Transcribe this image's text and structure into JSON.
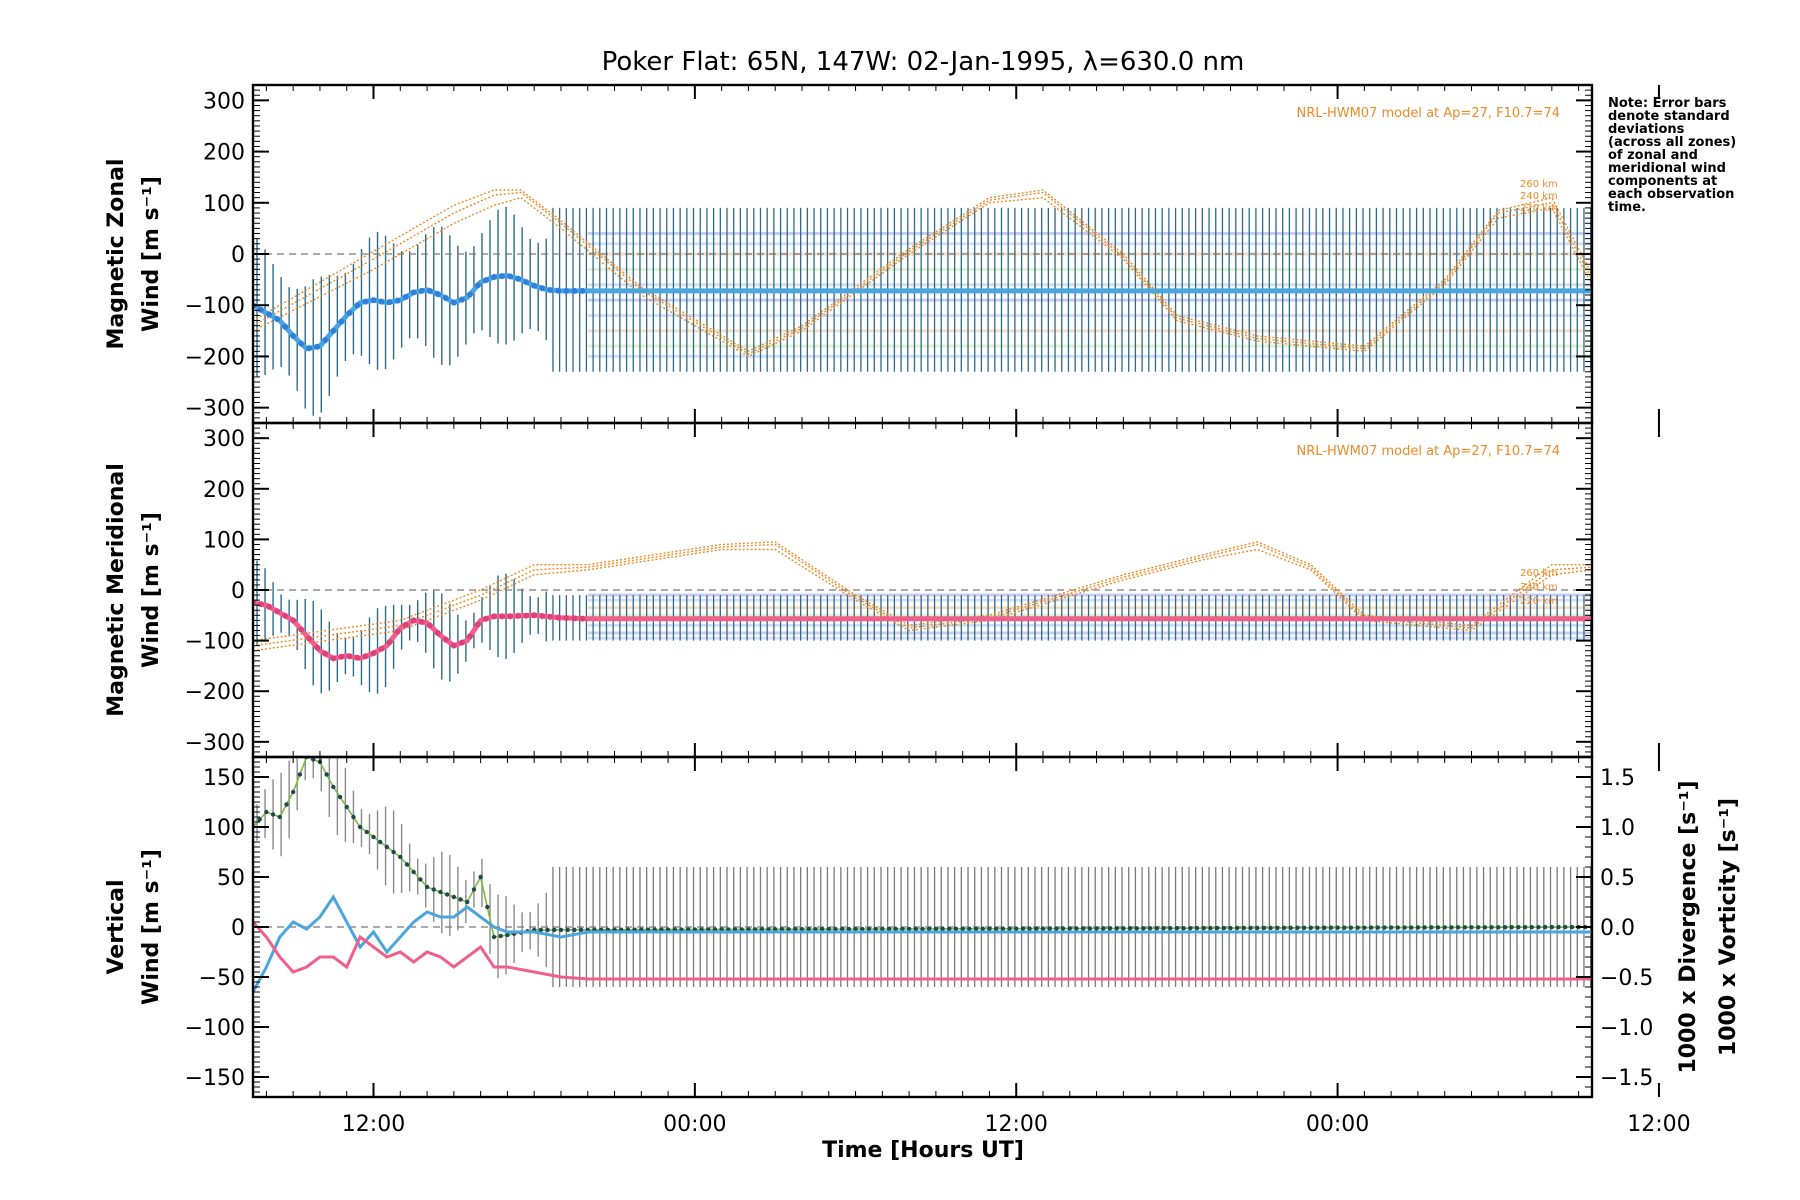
{
  "chart_data": {
    "title": "Poker Flat: 65N, 147W: 02-Jan-1995, λ=630.0 nm",
    "xlabel": "Time [Hours UT]",
    "note": [
      "Note: Error bars",
      "denote standard",
      "deviations",
      "(across all zones)",
      "of zonal and",
      "meridional wind",
      "components at",
      "each observation",
      "time."
    ],
    "x_range_hours": [
      7.5,
      57.5
    ],
    "x_tick_labels": [
      "12:00",
      "00:00",
      "12:00",
      "00:00",
      "12:00"
    ],
    "x_tick_hours": [
      12,
      24,
      36,
      48,
      60
    ],
    "panels": [
      {
        "type": "line",
        "name": "zonal",
        "ylabel": "Magnetic Zonal",
        "ylabel2": "Wind [m s⁻¹]",
        "ylim": [
          -330,
          330
        ],
        "yticks": [
          -300,
          -200,
          -100,
          0,
          100,
          200,
          300
        ],
        "model_label": "NRL-HWM07 model at Ap=27, F10.7=74",
        "model_alt_labels": [
          "260 km",
          "240 km",
          "220 km"
        ],
        "mean_color": "#4aa6dc",
        "errorbar": {
          "mean": -70,
          "half_width": 160
        },
        "mean_series": {
          "x": [
            7.5,
            8.0,
            8.5,
            9.0,
            9.5,
            10.0,
            10.5,
            11.0,
            11.5,
            12.0,
            12.5,
            13.0,
            13.5,
            14.0,
            14.5,
            15.0,
            15.5,
            16.0,
            16.5,
            17.0,
            17.5,
            18.0,
            18.5,
            19.0,
            20.0,
            57.5
          ],
          "y": [
            -100,
            -115,
            -130,
            -160,
            -185,
            -180,
            -150,
            -120,
            -95,
            -90,
            -95,
            -90,
            -75,
            -70,
            -80,
            -95,
            -85,
            -55,
            -45,
            -42,
            -50,
            -62,
            -70,
            -72,
            -72,
            -72
          ]
        },
        "model_series": [
          {
            "x": [
              7.5,
              12.0,
              15.0,
              16.5,
              17.5,
              19.0,
              22.0,
              26.0,
              28.0,
              32.0,
              35.0,
              37.0,
              40.0,
              42.0,
              45.0,
              49.0,
              52.0,
              54.0,
              56.0,
              57.5
            ],
            "y": [
              -150,
              -30,
              60,
              95,
              110,
              50,
              -80,
              -200,
              -150,
              0,
              100,
              110,
              -10,
              -130,
              -170,
              -190,
              -60,
              70,
              90,
              -60
            ]
          },
          {
            "x": [
              7.5,
              12.0,
              15.0,
              16.5,
              17.5,
              19.0,
              22.0,
              26.0,
              28.0,
              32.0,
              35.0,
              37.0,
              40.0,
              42.0,
              45.0,
              49.0,
              52.0,
              54.0,
              56.0,
              57.5
            ],
            "y": [
              -140,
              -10,
              80,
              115,
              120,
              60,
              -70,
              -195,
              -145,
              5,
              105,
              120,
              -5,
              -125,
              -165,
              -185,
              -55,
              80,
              100,
              -50
            ]
          },
          {
            "x": [
              7.5,
              12.0,
              15.0,
              16.5,
              17.5,
              19.0,
              22.0,
              26.0,
              28.0,
              32.0,
              35.0,
              37.0,
              40.0,
              42.0,
              45.0,
              49.0,
              52.0,
              54.0,
              56.0,
              57.5
            ],
            "y": [
              -130,
              5,
              95,
              125,
              125,
              65,
              -65,
              -190,
              -140,
              10,
              110,
              125,
              0,
              -120,
              -160,
              -180,
              -50,
              85,
              110,
              -40
            ]
          }
        ],
        "zone_levels": [
          40,
          20,
          0,
          -30,
          -60,
          -90,
          -120,
          -150,
          -180,
          -200
        ]
      },
      {
        "type": "line",
        "name": "meridional",
        "ylabel": "Magnetic Meridional",
        "ylabel2": "Wind [m s⁻¹]",
        "ylim": [
          -330,
          330
        ],
        "yticks": [
          -300,
          -200,
          -100,
          0,
          100,
          200,
          300
        ],
        "model_label": "NRL-HWM07 model at Ap=27, F10.7=74",
        "model_alt_labels": [
          "260 km",
          "240 km",
          "220 km"
        ],
        "mean_color": "#f0608c",
        "errorbar": {
          "mean": -55,
          "half_width": 45
        },
        "mean_series": {
          "x": [
            7.5,
            8.0,
            9.0,
            9.5,
            10.0,
            10.5,
            11.0,
            11.5,
            12.0,
            12.5,
            13.0,
            13.5,
            14.0,
            14.5,
            15.0,
            15.5,
            16.0,
            16.5,
            17.0,
            18.0,
            19.0,
            20.0,
            57.5
          ],
          "y": [
            -25,
            -30,
            -60,
            -90,
            -120,
            -135,
            -130,
            -135,
            -125,
            -110,
            -75,
            -60,
            -65,
            -90,
            -110,
            -100,
            -60,
            -52,
            -52,
            -50,
            -55,
            -57,
            -57
          ]
        },
        "model_series": [
          {
            "x": [
              7.5,
              13.0,
              16.0,
              18.0,
              20.0,
              25.0,
              27.0,
              30.0,
              32.0,
              35.0,
              40.0,
              43.0,
              45.0,
              47.0,
              49.0,
              53.0,
              56.0,
              57.5
            ],
            "y": [
              -120,
              -80,
              -20,
              30,
              40,
              80,
              80,
              -20,
              -80,
              -60,
              20,
              60,
              80,
              40,
              -60,
              -80,
              30,
              40
            ]
          },
          {
            "x": [
              7.5,
              13.0,
              16.0,
              18.0,
              20.0,
              25.0,
              27.0,
              30.0,
              32.0,
              35.0,
              40.0,
              43.0,
              45.0,
              47.0,
              49.0,
              53.0,
              56.0,
              57.5
            ],
            "y": [
              -110,
              -70,
              -10,
              40,
              45,
              85,
              90,
              -15,
              -75,
              -55,
              25,
              65,
              90,
              45,
              -55,
              -75,
              40,
              45
            ]
          },
          {
            "x": [
              7.5,
              13.0,
              16.0,
              18.0,
              20.0,
              25.0,
              27.0,
              30.0,
              32.0,
              35.0,
              40.0,
              43.0,
              45.0,
              47.0,
              49.0,
              53.0,
              56.0,
              57.5
            ],
            "y": [
              -100,
              -60,
              0,
              50,
              50,
              90,
              95,
              -10,
              -70,
              -50,
              30,
              70,
              95,
              50,
              -50,
              -70,
              50,
              50
            ]
          }
        ],
        "zone_levels": [
          -10,
          -20,
          -35,
          -50,
          -70,
          -85,
          -95
        ]
      },
      {
        "type": "line",
        "name": "vertical",
        "ylabel": "Vertical",
        "ylabel2": "Wind [m s⁻¹]",
        "ylabel_color": "#7cbb3e",
        "ylim": [
          -170,
          170
        ],
        "yticks": [
          -150,
          -100,
          -50,
          0,
          50,
          100,
          150
        ],
        "y2lim": [
          -1.7,
          1.7
        ],
        "y2ticks": [
          -1.5,
          -1.0,
          -0.5,
          0.0,
          0.5,
          1.0,
          1.5
        ],
        "y2ticklabels": [
          "−1.5",
          "−1.0",
          "−0.5",
          "0.0",
          "0.5",
          "1.0",
          "1.5"
        ],
        "y2label_div": "1000 x Divergence [s⁻¹]",
        "y2label_div_color": "#4aa6dc",
        "y2label_vort": "1000 x Vorticity [s⁻¹]",
        "y2label_vort_color": "#f0608c",
        "errorbar": {
          "mean": 0,
          "half_width": 60
        },
        "vertical_wind": {
          "x": [
            7.5,
            8.0,
            8.5,
            9.0,
            9.5,
            10.0,
            10.5,
            11.0,
            11.5,
            12.0,
            12.5,
            13.0,
            13.5,
            14.0,
            14.5,
            15.0,
            15.5,
            16.0,
            16.5,
            17.0,
            18.0,
            57.5
          ],
          "y": [
            100,
            115,
            110,
            135,
            170,
            165,
            140,
            120,
            100,
            90,
            80,
            70,
            55,
            40,
            35,
            30,
            25,
            50,
            -10,
            -8,
            -3,
            0
          ]
        },
        "divergence": {
          "x": [
            7.5,
            8.0,
            8.5,
            9.0,
            9.5,
            10.0,
            10.5,
            11.0,
            11.5,
            12.0,
            12.5,
            13.0,
            13.5,
            14.0,
            14.5,
            15.0,
            15.5,
            16.0,
            16.5,
            17.0,
            18.0,
            19.0,
            20.0,
            57.5
          ],
          "y": [
            -0.65,
            -0.4,
            -0.1,
            0.05,
            -0.02,
            0.1,
            0.3,
            0.05,
            -0.2,
            -0.05,
            -0.25,
            -0.1,
            0.05,
            0.15,
            0.1,
            0.1,
            0.2,
            0.1,
            0.0,
            -0.05,
            -0.05,
            -0.1,
            -0.05,
            -0.05
          ]
        },
        "vorticity": {
          "x": [
            7.5,
            8.0,
            8.5,
            9.0,
            9.5,
            10.0,
            10.5,
            11.0,
            11.5,
            12.0,
            12.5,
            13.0,
            13.5,
            14.0,
            14.5,
            15.0,
            15.5,
            16.0,
            16.5,
            17.0,
            18.0,
            19.0,
            20.0,
            57.5
          ],
          "y": [
            0.05,
            -0.1,
            -0.3,
            -0.45,
            -0.4,
            -0.3,
            -0.3,
            -0.4,
            -0.1,
            -0.2,
            -0.3,
            -0.25,
            -0.35,
            -0.25,
            -0.3,
            -0.4,
            -0.3,
            -0.2,
            -0.4,
            -0.4,
            -0.45,
            -0.5,
            -0.52,
            -0.52
          ]
        }
      }
    ]
  }
}
